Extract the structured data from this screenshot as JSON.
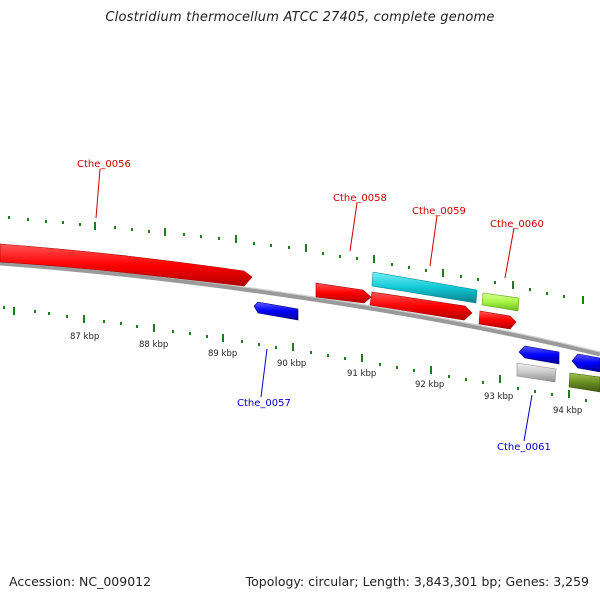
{
  "map": {
    "title": "Clostridium thermocellum ATCC 27405, complete genome",
    "accession": "Accession: NC_009012",
    "summary": "Topology: circular; Length: 3,843,301 bp; Genes: 3,259"
  },
  "colors": {
    "forward_gene": "#ff0000",
    "reverse_gene": "#0000ff",
    "cyan_gene": "#11c8d6",
    "lime_gene": "#a7f542",
    "gray_gene": "#c8c8c8",
    "olive_gene": "#6b8e23",
    "backbone": "#777777",
    "ticks": "#1c7f1c",
    "forward_label": "#cc0000",
    "reverse_label": "#0000cc"
  },
  "scale_labels": [
    "87 kbp",
    "88 kbp",
    "89 kbp",
    "90 kbp",
    "91 kbp",
    "92 kbp",
    "93 kbp",
    "94 kbp"
  ],
  "genes": {
    "cthe_0056": "Cthe_0056",
    "cthe_0057": "Cthe_0057",
    "cthe_0058": "Cthe_0058",
    "cthe_0059": "Cthe_0059",
    "cthe_0060": "Cthe_0060",
    "cthe_0061": "Cthe_0061"
  }
}
